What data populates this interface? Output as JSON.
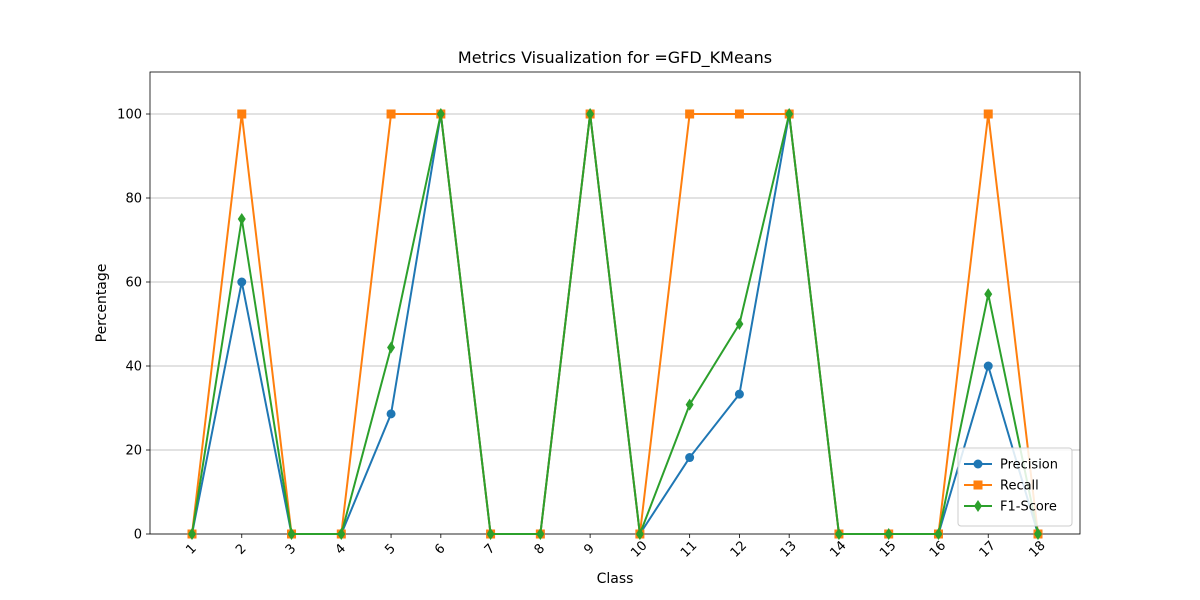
{
  "chart_data": {
    "type": "line",
    "title": "Metrics Visualization for =GFD_KMeans",
    "xlabel": "Class",
    "ylabel": "Percentage",
    "categories": [
      "1",
      "2",
      "3",
      "4",
      "5",
      "6",
      "7",
      "8",
      "9",
      "10",
      "11",
      "12",
      "13",
      "14",
      "15",
      "16",
      "17",
      "18"
    ],
    "ylim": [
      0,
      110
    ],
    "yticks": [
      0,
      20,
      40,
      60,
      80,
      100
    ],
    "grid": "y",
    "legend_position": "lower-right",
    "series": [
      {
        "name": "Precision",
        "color": "#1f77b4",
        "marker": "circle",
        "values": [
          0,
          60,
          0,
          0,
          28.6,
          100,
          0,
          0,
          100,
          0,
          18.2,
          33.3,
          100,
          0,
          0,
          0,
          40,
          0
        ]
      },
      {
        "name": "Recall",
        "color": "#ff7f0e",
        "marker": "square",
        "values": [
          0,
          100,
          0,
          0,
          100,
          100,
          0,
          0,
          100,
          0,
          100,
          100,
          100,
          0,
          0,
          0,
          100,
          0
        ]
      },
      {
        "name": "F1-Score",
        "color": "#2ca02c",
        "marker": "diamond",
        "values": [
          0,
          75,
          0,
          0,
          44.4,
          100,
          0,
          0,
          100,
          0,
          30.8,
          50,
          100,
          0,
          0,
          0,
          57.1,
          0
        ]
      }
    ]
  }
}
